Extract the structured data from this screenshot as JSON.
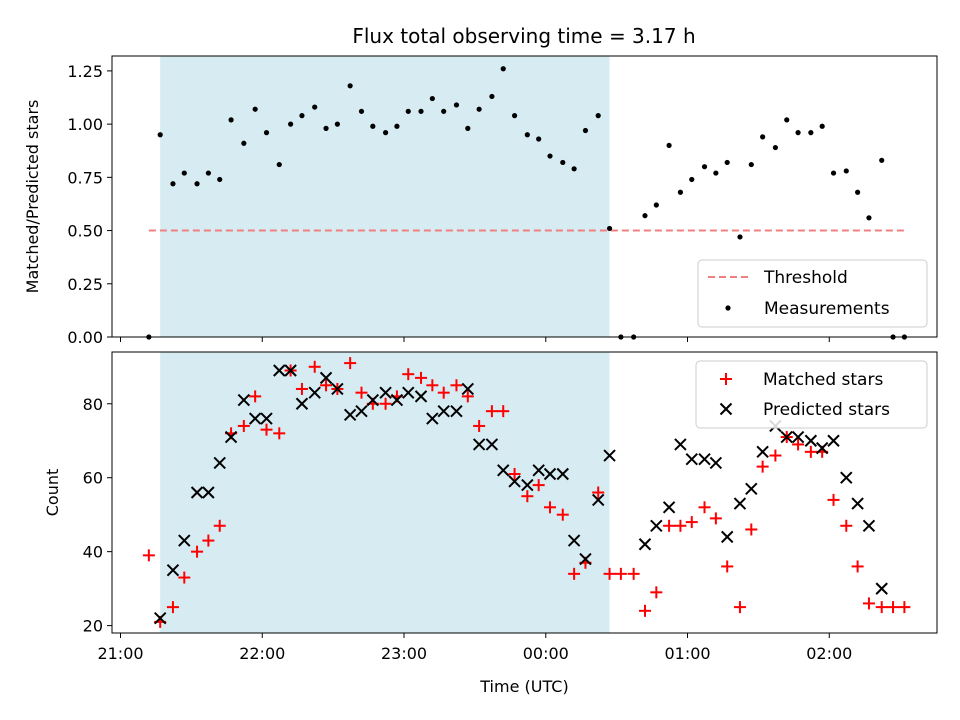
{
  "chart_data": [
    {
      "type": "scatter",
      "title": "Flux total observing time = 3.17 h",
      "xlabel": "",
      "ylabel": "Matched/Predicted stars",
      "ylim": [
        0,
        1.32
      ],
      "yticks": [
        "0.00",
        "0.25",
        "0.50",
        "0.75",
        "1.00",
        "1.25"
      ],
      "ytick_values": [
        0,
        0.25,
        0.5,
        0.75,
        1.0,
        1.25
      ],
      "x_unit": "hours since 21:00 UTC",
      "xlim": [
        -0.06,
        5.76
      ],
      "shaded_region": [
        0.28,
        3.45
      ],
      "threshold": {
        "name": "Threshold",
        "value": 0.5,
        "x_start": 0.2,
        "x_end": 5.55,
        "color": "#f08080"
      },
      "legend_position": "lower-right",
      "series": [
        {
          "name": "Measurements",
          "color": "#000000",
          "x": [
            0.2,
            0.28,
            0.37,
            0.45,
            0.54,
            0.62,
            0.7,
            0.78,
            0.87,
            0.95,
            1.03,
            1.12,
            1.2,
            1.28,
            1.37,
            1.45,
            1.53,
            1.62,
            1.7,
            1.78,
            1.87,
            1.95,
            2.03,
            2.12,
            2.2,
            2.28,
            2.37,
            2.45,
            2.53,
            2.62,
            2.7,
            2.78,
            2.87,
            2.95,
            3.03,
            3.12,
            3.2,
            3.28,
            3.37,
            3.45,
            3.53,
            3.62,
            3.7,
            3.78,
            3.87,
            3.95,
            4.03,
            4.12,
            4.2,
            4.28,
            4.37,
            4.45,
            4.53,
            4.62,
            4.7,
            4.78,
            4.87,
            4.95,
            5.03,
            5.12,
            5.2,
            5.28,
            5.37,
            5.45,
            5.53
          ],
          "y": [
            0.0,
            0.95,
            0.72,
            0.77,
            0.72,
            0.77,
            0.74,
            1.02,
            0.91,
            1.07,
            0.96,
            0.81,
            1.0,
            1.04,
            1.08,
            0.98,
            1.0,
            1.18,
            1.06,
            0.99,
            0.96,
            0.99,
            1.06,
            1.06,
            1.12,
            1.06,
            1.09,
            0.98,
            1.07,
            1.13,
            1.26,
            1.04,
            0.95,
            0.93,
            0.85,
            0.82,
            0.79,
            0.97,
            1.04,
            0.51,
            0.0,
            0.0,
            0.57,
            0.62,
            0.9,
            0.68,
            0.74,
            0.8,
            0.77,
            0.82,
            0.47,
            0.81,
            0.94,
            0.89,
            1.02,
            0.96,
            0.96,
            0.99,
            0.77,
            0.78,
            0.68,
            0.56,
            0.83,
            0.0,
            0.0
          ]
        }
      ]
    },
    {
      "type": "scatter",
      "title": "",
      "xlabel": "Time (UTC)",
      "ylabel": "Count",
      "ylim": [
        18,
        94
      ],
      "yticks": [
        "20",
        "40",
        "60",
        "80"
      ],
      "ytick_values": [
        20,
        40,
        60,
        80
      ],
      "x_unit": "hours since 21:00 UTC",
      "xlim": [
        -0.06,
        5.76
      ],
      "xticks": [
        "21:00",
        "22:00",
        "23:00",
        "00:00",
        "01:00",
        "02:00"
      ],
      "xtick_values": [
        0,
        1,
        2,
        3,
        4,
        5
      ],
      "shaded_region": [
        0.28,
        3.45
      ],
      "legend_position": "upper-right",
      "series": [
        {
          "name": "Matched stars",
          "color": "#ff0000",
          "marker": "plus",
          "x": [
            0.2,
            0.28,
            0.37,
            0.45,
            0.54,
            0.62,
            0.7,
            0.78,
            0.87,
            0.95,
            1.03,
            1.12,
            1.2,
            1.28,
            1.37,
            1.45,
            1.53,
            1.62,
            1.7,
            1.78,
            1.87,
            1.95,
            2.03,
            2.12,
            2.2,
            2.28,
            2.37,
            2.45,
            2.53,
            2.62,
            2.7,
            2.78,
            2.87,
            2.95,
            3.03,
            3.12,
            3.2,
            3.28,
            3.37,
            3.45,
            3.53,
            3.62,
            3.7,
            3.78,
            3.87,
            3.95,
            4.03,
            4.12,
            4.2,
            4.28,
            4.37,
            4.45,
            4.53,
            4.62,
            4.7,
            4.78,
            4.87,
            4.95,
            5.03,
            5.12,
            5.2,
            5.28,
            5.37,
            5.45,
            5.53
          ],
          "y": [
            39,
            21,
            25,
            33,
            40,
            43,
            47,
            72,
            74,
            82,
            73,
            72,
            89,
            84,
            90,
            85,
            84,
            91,
            83,
            80,
            80,
            82,
            88,
            87,
            85,
            83,
            85,
            82,
            74,
            78,
            78,
            61,
            55,
            58,
            52,
            50,
            34,
            37,
            56,
            34,
            34,
            34,
            24,
            29,
            47,
            47,
            48,
            52,
            49,
            36,
            25,
            46,
            63,
            66,
            71,
            69,
            67,
            67,
            54,
            47,
            36,
            26,
            25,
            25,
            25
          ]
        },
        {
          "name": "Predicted stars",
          "color": "#000000",
          "marker": "x",
          "x": [
            0.28,
            0.37,
            0.45,
            0.54,
            0.62,
            0.7,
            0.78,
            0.87,
            0.95,
            1.03,
            1.12,
            1.2,
            1.28,
            1.37,
            1.45,
            1.53,
            1.62,
            1.7,
            1.78,
            1.87,
            1.95,
            2.03,
            2.12,
            2.2,
            2.28,
            2.37,
            2.45,
            2.53,
            2.62,
            2.7,
            2.78,
            2.87,
            2.95,
            3.03,
            3.12,
            3.2,
            3.28,
            3.37,
            3.45,
            3.7,
            3.78,
            3.87,
            3.95,
            4.03,
            4.12,
            4.2,
            4.28,
            4.37,
            4.45,
            4.53,
            4.62,
            4.7,
            4.78,
            4.87,
            4.95,
            5.03,
            5.12,
            5.2,
            5.28,
            5.37
          ],
          "y": [
            22,
            35,
            43,
            56,
            56,
            64,
            71,
            81,
            76,
            76,
            89,
            89,
            80,
            83,
            87,
            84,
            77,
            78,
            81,
            83,
            81,
            83,
            82,
            76,
            78,
            78,
            84,
            69,
            69,
            62,
            59,
            58,
            62,
            61,
            61,
            43,
            38,
            54,
            66,
            42,
            47,
            52,
            69,
            65,
            65,
            64,
            44,
            53,
            57,
            67,
            74,
            71,
            71,
            70,
            68,
            70,
            60,
            53,
            47,
            30
          ]
        }
      ]
    }
  ]
}
